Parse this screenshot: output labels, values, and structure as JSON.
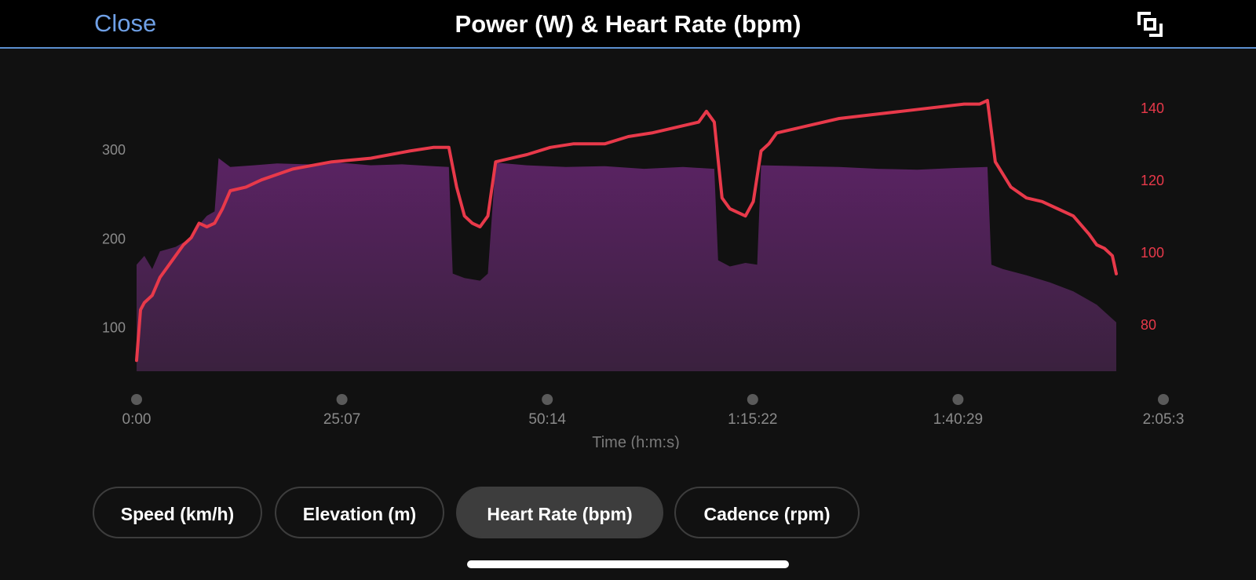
{
  "header": {
    "close_label": "Close",
    "title": "Power (W) & Heart Rate (bpm)",
    "expand_icon": "expand-icon"
  },
  "tabs": [
    {
      "label": "Speed (km/h)",
      "active": false
    },
    {
      "label": "Elevation (m)",
      "active": false
    },
    {
      "label": "Heart Rate (bpm)",
      "active": true
    },
    {
      "label": "Cadence (rpm)",
      "active": false
    }
  ],
  "colors": {
    "background": "#111111",
    "header_bg": "#000000",
    "accent_blue": "#6fa0e6",
    "heart_rate_line": "#e8394a",
    "power_fill_top": "#5a2363",
    "power_fill_bottom": "#3a213e",
    "tick_grey": "#8a8a8a"
  },
  "chart_data": {
    "type": "area",
    "xlabel": "Time (h:m:s)",
    "x_ticks": [
      "0:00",
      "25:07",
      "50:14",
      "1:15:22",
      "1:40:29",
      "2:05:3"
    ],
    "x_range_min": [
      0,
      125.5
    ],
    "y_left": {
      "ticks": [
        100,
        200,
        300
      ],
      "range": [
        50,
        355
      ]
    },
    "y_right": {
      "ticks": [
        80,
        100,
        120,
        140
      ],
      "range": [
        67,
        142
      ]
    },
    "series": [
      {
        "axis": "left",
        "kind": "area",
        "x_min": [
          0,
          1,
          2,
          3,
          5,
          7,
          8,
          9,
          10,
          10.5,
          12,
          15,
          18,
          22,
          26,
          30,
          34,
          38,
          40,
          40.5,
          42,
          44,
          45,
          46,
          50,
          55,
          60,
          65,
          70,
          74,
          74.5,
          76,
          78,
          79.5,
          80,
          85,
          90,
          95,
          100,
          105,
          109,
          109.5,
          111,
          114,
          117,
          120,
          123,
          125.5
        ],
        "values": [
          170,
          180,
          165,
          185,
          190,
          200,
          215,
          225,
          230,
          290,
          280,
          282,
          284,
          283,
          285,
          282,
          283,
          281,
          280,
          160,
          155,
          152,
          160,
          285,
          282,
          280,
          281,
          278,
          280,
          278,
          175,
          168,
          172,
          170,
          282,
          281,
          280,
          278,
          277,
          279,
          280,
          170,
          165,
          158,
          150,
          140,
          125,
          105
        ]
      },
      {
        "axis": "right",
        "kind": "line",
        "x_min": [
          0,
          0.5,
          1,
          2,
          3,
          4,
          5,
          6,
          7,
          8,
          9,
          10,
          11,
          12,
          14,
          16,
          20,
          25,
          30,
          35,
          38,
          40,
          41,
          42,
          43,
          44,
          45,
          46,
          48,
          50,
          53,
          56,
          60,
          63,
          66,
          70,
          72,
          73,
          74,
          75,
          76,
          78,
          79,
          80,
          81,
          82,
          84,
          86,
          90,
          94,
          98,
          102,
          106,
          108,
          109,
          110,
          112,
          114,
          116,
          118,
          120,
          122,
          123,
          124,
          125,
          125.5
        ],
        "values": [
          70,
          84,
          86,
          88,
          93,
          96,
          99,
          102,
          104,
          108,
          107,
          108,
          112,
          117,
          118,
          120,
          123,
          125,
          126,
          128,
          129,
          129,
          118,
          110,
          108,
          107,
          110,
          125,
          126,
          127,
          129,
          130,
          130,
          132,
          133,
          135,
          136,
          139,
          136,
          115,
          112,
          110,
          114,
          128,
          130,
          133,
          134,
          135,
          137,
          138,
          139,
          140,
          141,
          141,
          142,
          125,
          118,
          115,
          114,
          112,
          110,
          105,
          102,
          101,
          99,
          94
        ]
      }
    ]
  }
}
